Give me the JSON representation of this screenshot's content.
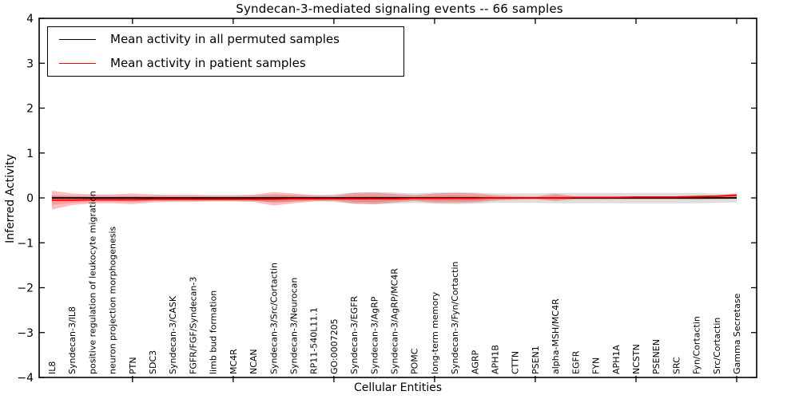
{
  "title": "Syndecan-3-mediated signaling events -- 66 samples",
  "chart_data": {
    "type": "line",
    "title": "Syndecan-3-mediated signaling events -- 66 samples",
    "xlabel": "Cellular Entities",
    "ylabel": "Inferred Activity",
    "ylim": [
      -4,
      4
    ],
    "yticks": [
      4,
      3,
      2,
      1,
      0,
      -1,
      -2,
      -3,
      -4
    ],
    "x_major_tick_indices": [
      4,
      9,
      14,
      19,
      24,
      29,
      34
    ],
    "grid": false,
    "legend_position": "upper left",
    "categories": [
      "IL8",
      "Syndecan-3/IL8",
      "positive regulation of leukocyte migration",
      "neuron projection morphogenesis",
      "PTN",
      "SDC3",
      "Syndecan-3/CASK",
      "FGFR/FGF/Syndecan-3",
      "limb bud formation",
      "MC4R",
      "NCAN",
      "Syndecan-3/Src/Cortactin",
      "Syndecan-3/Neurocan",
      "RP11-540L11.1",
      "GO:0007205",
      "Syndecan-3/EGFR",
      "Syndecan-3/AgRP",
      "Syndecan-3/AgRP/MC4R",
      "POMC",
      "long-term memory",
      "Syndecan-3/Fyn/Cortactin",
      "AGRP",
      "APH1B",
      "CTTN",
      "PSEN1",
      "alpha-MSH/MC4R",
      "EGFR",
      "FYN",
      "APH1A",
      "NCSTN",
      "PSENEN",
      "SRC",
      "Fyn/Cortactin",
      "Src/Cortactin",
      "Gamma Secretase"
    ],
    "series": [
      {
        "name": "Mean activity in all permuted samples",
        "color": "#000000",
        "style": "solid",
        "values": [
          0,
          0,
          0,
          0,
          0,
          0,
          0,
          0,
          0,
          0,
          0,
          0,
          0,
          0,
          0,
          0,
          0,
          0,
          0,
          0,
          0,
          0,
          0,
          0,
          0,
          0,
          0,
          0,
          0,
          0,
          0,
          0,
          0,
          0,
          0
        ]
      },
      {
        "name": "Mean activity in patient samples",
        "color": "#ff0000",
        "style": "solid",
        "values": [
          -0.05,
          -0.05,
          -0.04,
          -0.04,
          -0.04,
          -0.03,
          -0.03,
          -0.03,
          -0.03,
          -0.03,
          -0.03,
          -0.03,
          -0.02,
          -0.02,
          -0.02,
          -0.02,
          -0.02,
          -0.02,
          -0.01,
          -0.01,
          -0.01,
          -0.01,
          0,
          0,
          0,
          0,
          0.01,
          0.01,
          0.01,
          0.02,
          0.02,
          0.02,
          0.03,
          0.04,
          0.06
        ]
      }
    ],
    "bands": [
      {
        "name": "permuted samples range",
        "color": "rgba(0,0,0,0.13)",
        "upper": [
          0.05,
          0.05,
          0.05,
          0.05,
          0.05,
          0.05,
          0.05,
          0.05,
          0.05,
          0.05,
          0.06,
          0.08,
          0.07,
          0.06,
          0.08,
          0.12,
          0.13,
          0.12,
          0.1,
          0.12,
          0.13,
          0.12,
          0.1,
          0.1,
          0.1,
          0.11,
          0.11,
          0.11,
          0.11,
          0.11,
          0.11,
          0.11,
          0.11,
          0.1,
          0.09
        ],
        "lower": [
          -0.06,
          -0.06,
          -0.06,
          -0.06,
          -0.06,
          -0.06,
          -0.06,
          -0.06,
          -0.06,
          -0.06,
          -0.07,
          -0.09,
          -0.08,
          -0.07,
          -0.09,
          -0.13,
          -0.14,
          -0.13,
          -0.11,
          -0.13,
          -0.14,
          -0.13,
          -0.11,
          -0.11,
          -0.11,
          -0.12,
          -0.12,
          -0.12,
          -0.12,
          -0.12,
          -0.12,
          -0.12,
          -0.12,
          -0.11,
          -0.1
        ]
      },
      {
        "name": "patient samples outer band",
        "color": "rgba(255,0,0,0.26)",
        "upper": [
          0.16,
          0.1,
          0.08,
          0.08,
          0.1,
          0.08,
          0.07,
          0.07,
          0.06,
          0.06,
          0.07,
          0.13,
          0.1,
          0.06,
          0.05,
          0.11,
          0.12,
          0.09,
          0.06,
          0.1,
          0.11,
          0.1,
          0.06,
          0.04,
          0.03,
          0.09,
          0.03,
          0.03,
          0.03,
          0.03,
          0.03,
          0.03,
          0.04,
          0.05,
          0.1
        ],
        "lower": [
          -0.26,
          -0.16,
          -0.12,
          -0.12,
          -0.14,
          -0.1,
          -0.09,
          -0.09,
          -0.08,
          -0.08,
          -0.09,
          -0.17,
          -0.12,
          -0.08,
          -0.07,
          -0.13,
          -0.14,
          -0.1,
          -0.07,
          -0.11,
          -0.11,
          -0.1,
          -0.06,
          -0.04,
          -0.03,
          -0.07,
          -0.03,
          -0.03,
          -0.03,
          -0.03,
          -0.03,
          -0.03,
          -0.04,
          -0.03,
          -0.02
        ]
      },
      {
        "name": "patient samples inner band",
        "color": "rgba(255,0,0,0.18)",
        "upper": [
          0.06,
          0.03,
          0.02,
          0.02,
          0.03,
          0.025,
          0.02,
          0.02,
          0.015,
          0.015,
          0.02,
          0.05,
          0.04,
          0.02,
          0.015,
          0.045,
          0.05,
          0.035,
          0.025,
          0.045,
          0.05,
          0.04,
          0.025,
          0.015,
          0.01,
          0.045,
          0.01,
          0.01,
          0.01,
          0.015,
          0.015,
          0.015,
          0.02,
          0.025,
          0.08
        ],
        "lower": [
          -0.16,
          -0.11,
          -0.08,
          -0.08,
          -0.09,
          -0.065,
          -0.06,
          -0.06,
          -0.055,
          -0.055,
          -0.06,
          -0.11,
          -0.08,
          -0.055,
          -0.045,
          -0.085,
          -0.09,
          -0.065,
          -0.045,
          -0.07,
          -0.07,
          -0.065,
          -0.04,
          -0.025,
          -0.02,
          -0.045,
          -0.02,
          -0.02,
          -0.02,
          -0.015,
          -0.015,
          -0.015,
          -0.02,
          -0.01,
          0.02
        ]
      }
    ],
    "zero_line": {
      "value": 0,
      "style": "dotted",
      "color": "#000000"
    }
  }
}
